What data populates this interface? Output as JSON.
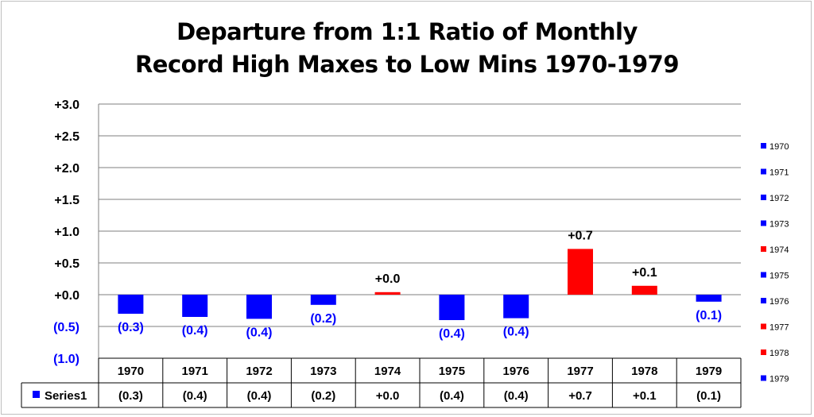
{
  "chart_data": {
    "type": "bar",
    "title_line1": "Departure from 1:1 Ratio of Monthly",
    "title_line2": "Record High Maxes to Low Mins 1970-1979",
    "categories": [
      "1970",
      "1971",
      "1972",
      "1973",
      "1974",
      "1975",
      "1976",
      "1977",
      "1978",
      "1979"
    ],
    "series": [
      {
        "name": "Series1",
        "values": [
          -0.3,
          -0.35,
          -0.38,
          -0.16,
          0.04,
          -0.4,
          -0.37,
          0.72,
          0.14,
          -0.11
        ],
        "labels": [
          "(0.3)",
          "(0.4)",
          "(0.4)",
          "(0.2)",
          "+0.0",
          "(0.4)",
          "(0.4)",
          "+0.7",
          "+0.1",
          "(0.1)"
        ],
        "colors": [
          "#0000ff",
          "#0000ff",
          "#0000ff",
          "#0000ff",
          "#ff0000",
          "#0000ff",
          "#0000ff",
          "#ff0000",
          "#ff0000",
          "#0000ff"
        ]
      }
    ],
    "ylim": [
      -1.0,
      3.0
    ],
    "yticks": [
      3.0,
      2.5,
      2.0,
      1.5,
      1.0,
      0.5,
      0.0,
      -0.5,
      -1.0
    ],
    "ytick_labels": [
      "+3.0",
      "+2.5",
      "+2.0",
      "+1.5",
      "+1.0",
      "+0.5",
      "+0.0",
      "(0.5)",
      "(1.0)"
    ],
    "legend_position": "right",
    "legend_entries": [
      "1970",
      "1971",
      "1972",
      "1973",
      "1974",
      "1975",
      "1976",
      "1977",
      "1978",
      "1979"
    ],
    "data_table": true,
    "colors": {
      "positive": "#ff0000",
      "negative": "#0000ff",
      "grid": "#7f7f7f"
    }
  }
}
